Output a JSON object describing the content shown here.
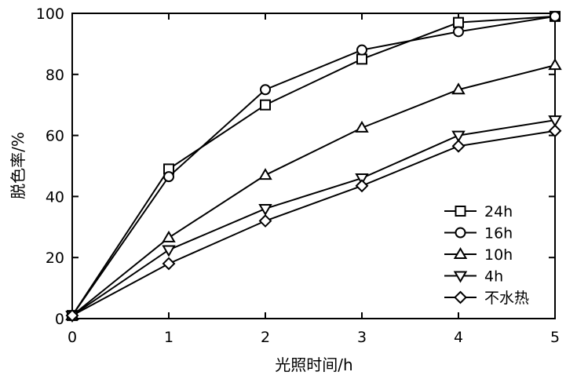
{
  "chart_data": {
    "type": "line",
    "title": "",
    "xlabel": "光照时间/h",
    "ylabel": "脱色率/%",
    "xlim": [
      0,
      5
    ],
    "ylim": [
      0,
      100
    ],
    "xticks": [
      "0",
      "1",
      "2",
      "3",
      "4",
      "5"
    ],
    "yticks": [
      "0",
      "20",
      "40",
      "60",
      "80",
      "100"
    ],
    "grid": false,
    "legend_position": "bottom-right",
    "x": [
      0,
      1,
      2,
      3,
      4,
      5
    ],
    "series": [
      {
        "name": "24h",
        "marker": "square",
        "values": [
          1,
          49,
          70,
          85,
          97,
          99
        ]
      },
      {
        "name": "16h",
        "marker": "circle",
        "values": [
          1,
          46.5,
          75,
          88,
          94,
          99
        ]
      },
      {
        "name": "10h",
        "marker": "triangle-up",
        "values": [
          1,
          26.5,
          47,
          62.5,
          75,
          83
        ]
      },
      {
        "name": "4h",
        "marker": "triangle-down",
        "values": [
          1,
          22.5,
          36,
          46,
          60,
          65
        ]
      },
      {
        "name": "不水热",
        "marker": "diamond",
        "values": [
          1,
          18,
          32,
          43.5,
          56.5,
          61.5
        ]
      }
    ]
  }
}
